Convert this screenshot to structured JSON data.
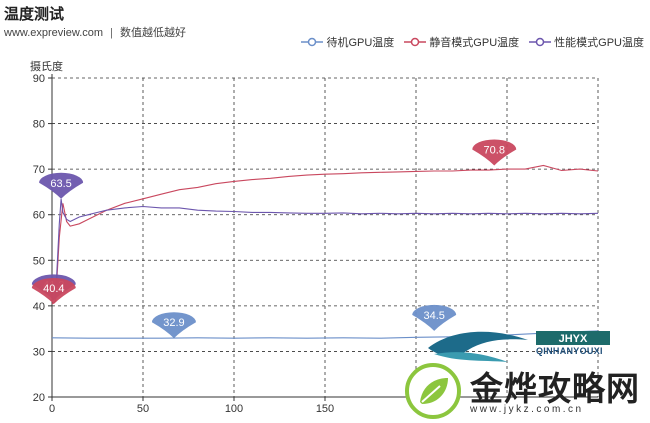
{
  "header": {
    "title": "温度测试",
    "site": "www.expreview.com",
    "separator": "|",
    "note": "数值越低越好"
  },
  "legend": [
    {
      "label": "待机GPU温度",
      "color": "#6b8fc9"
    },
    {
      "label": "静音模式GPU温度",
      "color": "#c9485f"
    },
    {
      "label": "性能模式GPU温度",
      "color": "#6c56ad"
    }
  ],
  "watermark": {
    "logo_letters": "JHYX",
    "logo_text": "QINHANYOUXI",
    "main_text": "金烨攻略网",
    "url": "www.jykz.com.cn"
  },
  "chart_data": {
    "type": "line",
    "ylabel": "摄氏度",
    "xlabel": "",
    "xlim": [
      0,
      300
    ],
    "ylim": [
      20,
      90
    ],
    "x_ticks": [
      0,
      50,
      100,
      150
    ],
    "y_ticks": [
      20,
      30,
      40,
      50,
      60,
      70,
      80,
      90
    ],
    "grid": true,
    "legend_position": "top-right",
    "series": [
      {
        "name": "待机GPU温度",
        "color": "#6b8fc9",
        "x": [
          0,
          20,
          40,
          60,
          80,
          100,
          120,
          140,
          160,
          180,
          200,
          220,
          240,
          260,
          280,
          300
        ],
        "y": [
          33.0,
          32.9,
          32.9,
          32.9,
          33.0,
          32.9,
          33.0,
          32.9,
          33.0,
          32.9,
          33.1,
          33.2,
          33.4,
          33.8,
          34.2,
          34.5
        ]
      },
      {
        "name": "静音模式GPU温度",
        "color": "#c9485f",
        "x": [
          0,
          2,
          4,
          6,
          8,
          10,
          15,
          20,
          25,
          30,
          40,
          50,
          60,
          70,
          80,
          90,
          100,
          110,
          120,
          130,
          140,
          150,
          160,
          170,
          180,
          190,
          200,
          210,
          220,
          230,
          240,
          250,
          260,
          270,
          280,
          290,
          300
        ],
        "y": [
          40.4,
          41.0,
          55.0,
          62.5,
          58.5,
          57.5,
          58.0,
          59.0,
          60.0,
          61.0,
          62.5,
          63.5,
          64.5,
          65.5,
          66.0,
          66.8,
          67.3,
          67.7,
          68.0,
          68.4,
          68.7,
          68.9,
          69.0,
          69.2,
          69.3,
          69.4,
          69.5,
          69.6,
          69.6,
          69.8,
          69.8,
          70.0,
          70.0,
          70.8,
          69.7,
          70.0,
          69.6
        ]
      },
      {
        "name": "性能模式GPU温度",
        "color": "#6c56ad",
        "x": [
          0,
          2,
          4,
          5,
          6,
          8,
          10,
          15,
          20,
          25,
          30,
          40,
          50,
          60,
          70,
          80,
          90,
          100,
          110,
          120,
          130,
          140,
          150,
          160,
          170,
          180,
          190,
          200,
          210,
          220,
          230,
          240,
          250,
          260,
          270,
          280,
          290,
          300
        ],
        "y": [
          41.2,
          42.0,
          58.0,
          63.5,
          60.5,
          59.0,
          58.5,
          59.5,
          60.0,
          60.5,
          61.0,
          61.5,
          61.8,
          61.5,
          61.5,
          61.0,
          60.8,
          60.7,
          60.5,
          60.5,
          60.4,
          60.3,
          60.3,
          60.4,
          60.2,
          60.3,
          60.2,
          60.3,
          60.2,
          60.3,
          60.2,
          60.3,
          60.2,
          60.3,
          60.2,
          60.3,
          60.2,
          60.3
        ]
      }
    ],
    "annotations": [
      {
        "label": "63.5",
        "x": 5,
        "y": 63.5,
        "color": "#6c56ad"
      },
      {
        "label": "41.2",
        "x": 1,
        "y": 41.2,
        "color": "#6c56ad"
      },
      {
        "label": "40.4",
        "x": 1,
        "y": 40.4,
        "color": "#c9485f"
      },
      {
        "label": "32.9",
        "x": 67,
        "y": 32.9,
        "color": "#6b8fc9"
      },
      {
        "label": "34.5",
        "x": 210,
        "y": 34.5,
        "color": "#6b8fc9"
      },
      {
        "label": "70.8",
        "x": 243,
        "y": 70.8,
        "color": "#c9485f"
      }
    ]
  }
}
